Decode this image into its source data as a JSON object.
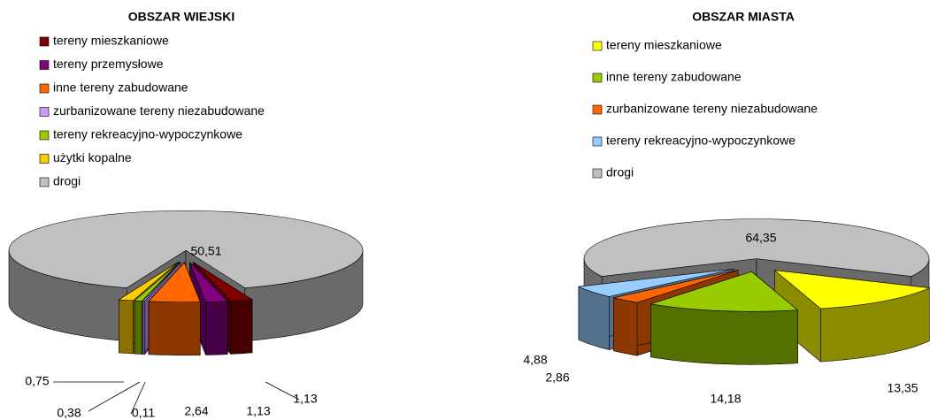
{
  "chart_data": [
    {
      "type": "pie",
      "title": "OBSZAR WIEJSKI",
      "categories": [
        "tereny mieszkaniowe",
        "tereny przemysłowe",
        "inne tereny zabudowane",
        "zurbanizowane tereny niezabudowane",
        "tereny rekreacyjno-wypoczynkowe",
        "użytki kopalne",
        "drogi"
      ],
      "values": [
        1.13,
        1.13,
        2.64,
        0.11,
        0.38,
        0.75,
        50.51
      ],
      "value_labels": [
        "1,13",
        "1,13",
        "2,64",
        "0,11",
        "0,38",
        "0,75",
        "50,51"
      ],
      "colors": [
        "#800000",
        "#800080",
        "#ff6600",
        "#cc99ff",
        "#99cc00",
        "#ffcc00",
        "#c0c0c0"
      ]
    },
    {
      "type": "pie",
      "title": "OBSZAR MIASTA",
      "categories": [
        "tereny mieszkaniowe",
        "inne tereny zabudowane",
        "zurbanizowane tereny niezabudowane",
        "tereny rekreacyjno-wypoczynkowe",
        "drogi"
      ],
      "values": [
        13.35,
        14.18,
        2.86,
        4.88,
        64.35
      ],
      "value_labels": [
        "13,35",
        "14,18",
        "2,86",
        "4,88",
        "64,35"
      ],
      "colors": [
        "#ffff00",
        "#99cc00",
        "#ff6600",
        "#99ccff",
        "#c0c0c0"
      ]
    }
  ]
}
